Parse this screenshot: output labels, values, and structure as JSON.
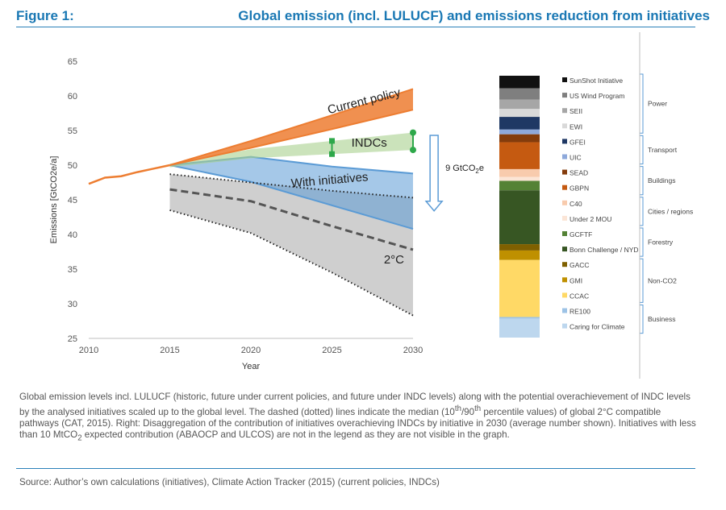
{
  "figure": {
    "label": "Figure 1:",
    "title": "Global emission (incl. LULUCF) and emissions reduction from initiatives"
  },
  "caption": {
    "part1": "Global emission levels incl. LULUCF (historic, future under current policies, and future under INDC levels) along with the potential overachievement of INDC levels by the analysed initiatives scaled up to the global level. The dashed (dotted) lines indicate the median (",
    "sup1": "th",
    "part2": "/90",
    "sup2": "th",
    "part3": " percentile values) of global 2°C compatible pathways (CAT, 2015). Right: Disaggregation of the contribution of initiatives overachieving INDCs by initiative in 2030 (average number shown). Initiatives with less than 10 MtCO",
    "sub1": "2",
    "part4": " expected contribution (ABAOCP and ULCOS) are not in the legend as they are not visible in the graph.",
    "pct_low": "10"
  },
  "source": "Source: Author’s own calculations (initiatives), Climate Action Tracker (2015) (current policies, INDCs)",
  "colors": {
    "current_policy": "#ed7d31",
    "indcs": "#a9d18e",
    "with_initiatives": "#5b9bd5",
    "two_degree": "#bfbfbf",
    "indc_marker": "#2ea84a",
    "header": "#1a78b4"
  },
  "chart_data": [
    {
      "type": "area",
      "xlabel": "Year",
      "ylabel": "Emissions [GtCO2e/a]",
      "xlim": [
        2010,
        2030
      ],
      "ylim": [
        25,
        65
      ],
      "x_ticks": [
        2010,
        2015,
        2020,
        2025,
        2030
      ],
      "y_ticks": [
        25,
        30,
        35,
        40,
        45,
        50,
        55,
        60,
        65
      ],
      "grid": false,
      "historic": {
        "x": [
          2010,
          2011,
          2012,
          2013,
          2014,
          2015
        ],
        "y": [
          47.3,
          48.2,
          48.4,
          49.0,
          49.5,
          50.0
        ]
      },
      "series": [
        {
          "name": "Current policy",
          "x": [
            2015,
            2020,
            2025,
            2030
          ],
          "upper": [
            50.0,
            53.5,
            57.2,
            61.0
          ],
          "lower": [
            50.0,
            52.5,
            55.2,
            58.0
          ]
        },
        {
          "name": "INDCs",
          "x": [
            2015,
            2020,
            2025,
            2030
          ],
          "upper": [
            50.2,
            52.3,
            53.5,
            54.7
          ],
          "lower": [
            49.7,
            51.0,
            51.6,
            52.2
          ]
        },
        {
          "name": "With initiatives",
          "x": [
            2015,
            2020,
            2025,
            2030
          ],
          "upper": [
            50.0,
            51.2,
            49.8,
            48.8
          ],
          "lower": [
            50.0,
            47.6,
            44.2,
            40.8
          ]
        },
        {
          "name": "2°C",
          "x": [
            2015,
            2020,
            2025,
            2030
          ],
          "p90": [
            48.7,
            47.5,
            46.3,
            45.3
          ],
          "median": [
            46.5,
            44.8,
            41.2,
            37.8
          ],
          "p10": [
            43.5,
            40.2,
            34.5,
            28.3
          ]
        }
      ],
      "indc_range_markers": [
        {
          "x": 2025,
          "low": 51.6,
          "high": 53.5
        },
        {
          "x": 2030,
          "low": 52.2,
          "high": 54.7
        }
      ],
      "annotation": {
        "label_prefix": "9 GtCO",
        "label_sub": "2",
        "label_suffix": "e",
        "value": 9
      }
    },
    {
      "type": "bar",
      "stacked": true,
      "title": "",
      "segments": [
        {
          "name": "SunShot Initiative",
          "value": 0.4,
          "color": "#111111"
        },
        {
          "name": "US Wind Program",
          "value": 0.35,
          "color": "#7f7f7f"
        },
        {
          "name": "SEII",
          "value": 0.3,
          "color": "#a6a6a6"
        },
        {
          "name": "EWI",
          "value": 0.25,
          "color": "#d9d9d9"
        },
        {
          "name": "GFEI",
          "value": 0.4,
          "color": "#1f3864"
        },
        {
          "name": "UIC",
          "value": 0.15,
          "color": "#8ea9db"
        },
        {
          "name": "SEAD",
          "value": 0.25,
          "color": "#843c0c"
        },
        {
          "name": "GBPN",
          "value": 0.85,
          "color": "#c55a11"
        },
        {
          "name": "C40",
          "value": 0.25,
          "color": "#f8cbad"
        },
        {
          "name": "Under 2 MOU",
          "value": 0.12,
          "color": "#fbe5d6"
        },
        {
          "name": "GCFTF",
          "value": 0.3,
          "color": "#548235"
        },
        {
          "name": "Bonn Challenge / NYD",
          "value": 1.7,
          "color": "#375623"
        },
        {
          "name": "GACC",
          "value": 0.2,
          "color": "#7f6000"
        },
        {
          "name": "GMI",
          "value": 0.3,
          "color": "#bf9000"
        },
        {
          "name": "CCAC",
          "value": 1.8,
          "color": "#ffd966"
        },
        {
          "name": "RE100",
          "value": 0.05,
          "color": "#9dc3e6"
        },
        {
          "name": "Caring for Climate",
          "value": 0.6,
          "color": "#bdd7ee"
        }
      ],
      "groups": [
        {
          "name": "Power",
          "members": [
            "SunShot Initiative",
            "US Wind Program",
            "SEII",
            "EWI"
          ]
        },
        {
          "name": "Transport",
          "members": [
            "GFEI",
            "UIC"
          ]
        },
        {
          "name": "Buildings",
          "members": [
            "SEAD",
            "GBPN"
          ]
        },
        {
          "name": "Cities / regions",
          "members": [
            "C40",
            "Under 2 MOU"
          ]
        },
        {
          "name": "Forestry",
          "members": [
            "GCFTF",
            "Bonn Challenge / NYD"
          ]
        },
        {
          "name": "Non-CO2",
          "members": [
            "GACC",
            "GMI",
            "CCAC"
          ]
        },
        {
          "name": "Business",
          "members": [
            "RE100",
            "Caring for Climate"
          ]
        }
      ]
    }
  ]
}
